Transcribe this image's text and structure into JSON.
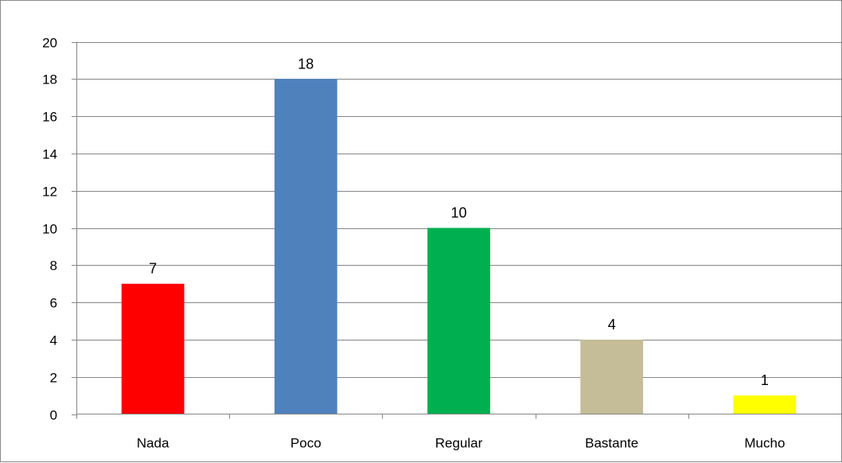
{
  "chart_data": {
    "type": "bar",
    "title": "",
    "xlabel": "",
    "ylabel": "",
    "categories": [
      "Nada",
      "Poco",
      "Regular",
      "Bastante",
      "Mucho"
    ],
    "values": [
      7,
      18,
      10,
      4,
      1
    ],
    "data_labels": [
      "7",
      "18",
      "10",
      "4",
      "1"
    ],
    "bar_colors": [
      "#ff0000",
      "#4f81bd",
      "#00b050",
      "#c4bd97",
      "#ffff00"
    ],
    "ylim": [
      0,
      20
    ],
    "yticks": [
      0,
      2,
      4,
      6,
      8,
      10,
      12,
      14,
      16,
      18,
      20
    ],
    "ytick_labels": [
      "0",
      "2",
      "4",
      "6",
      "8",
      "10",
      "12",
      "14",
      "16",
      "18",
      "20"
    ],
    "grid": true,
    "legend": "none",
    "gridline_color": "#868686",
    "axis_color": "#868686"
  }
}
